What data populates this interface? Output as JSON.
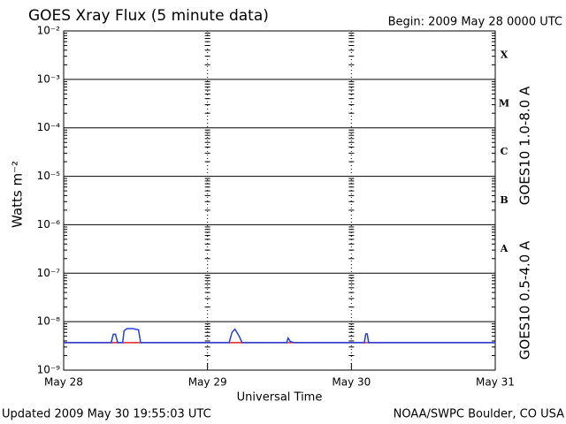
{
  "chart_data": {
    "type": "line",
    "title": "GOES Xray Flux (5 minute data)",
    "begin_label": "Begin:  2009 May 28 0000 UTC",
    "ylabel": "Watts m⁻²",
    "xlabel": "Universal Time",
    "updated": "Updated 2009 May 30 19:55:03 UTC",
    "source": "NOAA/SWPC Boulder, CO USA",
    "flare_classes": [
      "X",
      "M",
      "C",
      "B",
      "A"
    ],
    "ylog": true,
    "grid": true,
    "xlim": [
      0,
      3
    ],
    "xticks": [
      {
        "value": 0,
        "label": "May 28"
      },
      {
        "value": 1,
        "label": "May 29"
      },
      {
        "value": 2,
        "label": "May 30"
      },
      {
        "value": 3,
        "label": "May 31"
      }
    ],
    "ylim": [
      1e-09,
      0.01
    ],
    "yticks": [
      {
        "value": 1e-09,
        "label": "10⁻⁹"
      },
      {
        "value": 1e-08,
        "label": "10⁻⁸"
      },
      {
        "value": 1e-07,
        "label": "10⁻⁷"
      },
      {
        "value": 1e-06,
        "label": "10⁻⁶"
      },
      {
        "value": 1e-05,
        "label": "10⁻⁵"
      },
      {
        "value": 0.0001,
        "label": "10⁻⁴"
      },
      {
        "value": 0.001,
        "label": "10⁻³"
      },
      {
        "value": 0.01,
        "label": "10⁻²"
      }
    ],
    "series": [
      {
        "name": "GOES10 1.0-8.0 A",
        "color": "#e02020",
        "x": [
          0,
          3
        ],
        "values": [
          3.7e-09,
          3.7e-09
        ]
      },
      {
        "name": "GOES10 0.5-4.0 A",
        "color": "#2040e0",
        "x": [
          0,
          0.33,
          0.345,
          0.36,
          0.375,
          0.39,
          0.41,
          0.42,
          0.44,
          0.48,
          0.52,
          0.535,
          0.55,
          1.15,
          1.17,
          1.19,
          1.22,
          1.24,
          1.55,
          1.56,
          1.575,
          1.6,
          2.09,
          2.1,
          2.11,
          2.12,
          3
        ],
        "values": [
          3.7e-09,
          3.7e-09,
          5.5e-09,
          5.5e-09,
          3.7e-09,
          3.7e-09,
          3.7e-09,
          6.5e-09,
          7.2e-09,
          7.2e-09,
          6.8e-09,
          3.7e-09,
          3.7e-09,
          3.7e-09,
          6e-09,
          7e-09,
          5e-09,
          3.7e-09,
          3.7e-09,
          4.6e-09,
          3.9e-09,
          3.7e-09,
          3.7e-09,
          5.6e-09,
          5.6e-09,
          3.7e-09,
          3.7e-09
        ]
      }
    ]
  }
}
